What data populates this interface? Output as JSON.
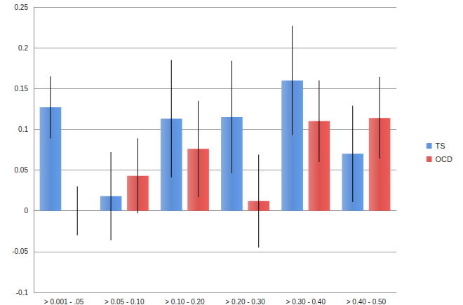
{
  "chart_data": {
    "type": "bar",
    "categories": [
      "> 0.001 - .05",
      "> 0.05 - 0.10",
      "> 0.10 - 0.20",
      "> 0.20 - 0.30",
      "> 0.30 - 0.40",
      "> 0.40 - 0.50"
    ],
    "series": [
      {
        "name": "TS",
        "color": "#5b8fd8",
        "values": [
          0.127,
          0.018,
          0.113,
          0.115,
          0.16,
          0.07
        ],
        "errors": [
          0.038,
          0.054,
          0.072,
          0.069,
          0.067,
          0.059
        ]
      },
      {
        "name": "OCD",
        "color": "#dc5350",
        "values": [
          0.0,
          0.043,
          0.076,
          0.012,
          0.11,
          0.114
        ],
        "errors": [
          0.03,
          0.046,
          0.059,
          0.057,
          0.05,
          0.05
        ]
      }
    ],
    "ylim": [
      -0.1,
      0.25
    ],
    "yticks": [
      -0.1,
      -0.05,
      0,
      0.05,
      0.1,
      0.15,
      0.2,
      0.25
    ],
    "grid": true,
    "legend": "right"
  }
}
